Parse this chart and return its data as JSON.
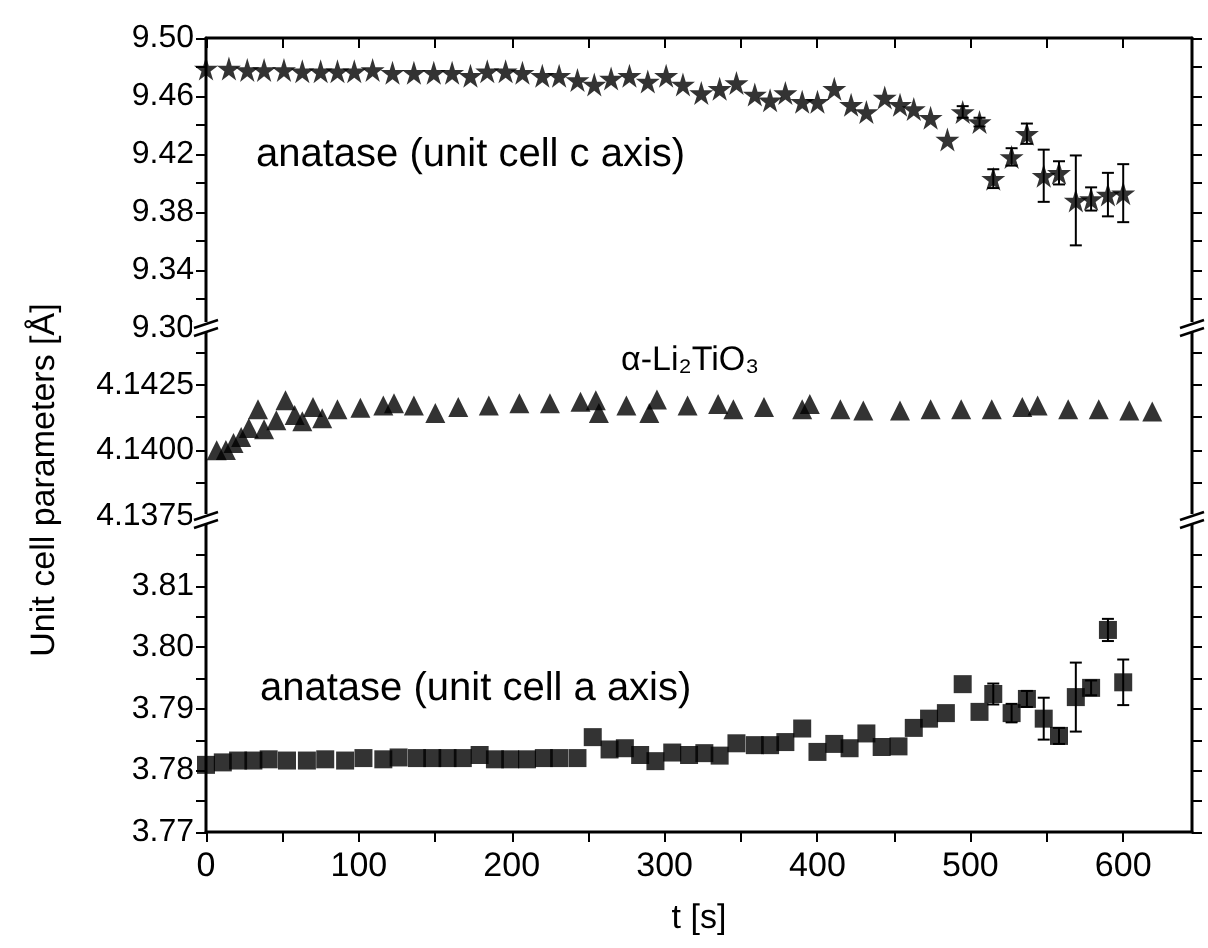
{
  "chart_data": [
    {
      "type": "scatter",
      "marker": "star",
      "color": "#000000",
      "tick_labels": "y",
      "annotations": [
        "anatase (unit cell c axis)"
      ],
      "x": [
        0,
        15,
        27,
        38,
        51,
        63,
        75,
        86,
        97,
        109,
        122,
        136,
        149,
        161,
        173,
        184,
        196,
        207,
        220,
        231,
        243,
        254,
        265,
        277,
        289,
        301,
        312,
        324,
        336,
        347,
        359,
        369,
        379,
        390,
        400,
        411,
        422,
        432,
        444,
        454,
        463,
        474,
        485,
        495,
        506,
        515,
        527,
        537,
        548,
        558,
        569,
        579,
        590,
        600
      ],
      "values": [
        9.479,
        9.479,
        9.478,
        9.478,
        9.478,
        9.477,
        9.477,
        9.477,
        9.477,
        9.478,
        9.476,
        9.476,
        9.476,
        9.476,
        9.474,
        9.477,
        9.477,
        9.476,
        9.474,
        9.474,
        9.471,
        9.468,
        9.472,
        9.474,
        9.47,
        9.474,
        9.468,
        9.462,
        9.465,
        9.469,
        9.461,
        9.457,
        9.462,
        9.456,
        9.456,
        9.465,
        9.454,
        9.449,
        9.459,
        9.454,
        9.451,
        9.445,
        9.43,
        9.449,
        9.442,
        9.403,
        9.418,
        9.434,
        9.405,
        9.407,
        9.388,
        9.389,
        9.392,
        9.393
      ],
      "errors": [
        null,
        null,
        null,
        null,
        null,
        null,
        null,
        null,
        null,
        null,
        null,
        null,
        null,
        null,
        null,
        null,
        null,
        null,
        null,
        null,
        null,
        null,
        null,
        null,
        null,
        null,
        null,
        null,
        null,
        null,
        null,
        null,
        null,
        null,
        null,
        null,
        null,
        null,
        null,
        null,
        null,
        null,
        null,
        0.004,
        0.003,
        0.0065,
        0.006,
        0.007,
        0.018,
        0.008,
        0.031,
        0.008,
        0.015,
        0.02
      ],
      "xlim": [
        0,
        645
      ],
      "xticks": [
        0,
        {
          "value": 50,
          "label": null
        },
        100,
        {
          "value": 150,
          "label": null
        },
        200,
        {
          "value": 250,
          "label": null
        },
        300,
        {
          "value": 350,
          "label": null
        },
        400,
        {
          "value": 450,
          "label": null
        },
        500,
        {
          "value": 550,
          "label": null
        },
        600
      ],
      "ylim": [
        9.3,
        9.5
      ],
      "yticks": [
        {
          "value": 9.3,
          "label": "9.30"
        },
        {
          "value": 9.32,
          "label": null
        },
        9.34,
        {
          "value": 9.36,
          "label": null
        },
        9.38,
        {
          "value": 9.4,
          "label": null
        },
        9.42,
        {
          "value": 9.44,
          "label": null
        },
        9.46,
        {
          "value": 9.48,
          "label": null
        },
        {
          "value": 9.5,
          "label": "9.50"
        }
      ]
    },
    {
      "type": "scatter",
      "marker": "triangle",
      "color": "#000000",
      "tick_labels": "y",
      "ylabel": "Unit cell parameters [Å]",
      "annotations": [
        "α-Li₂TiO₃"
      ],
      "x": [
        7,
        13,
        18,
        23,
        28,
        34,
        38,
        46,
        52,
        58,
        63,
        70,
        76,
        86,
        101,
        116,
        123,
        136,
        150,
        165,
        185,
        205,
        225,
        245,
        255,
        257,
        275,
        290,
        295,
        315,
        335,
        345,
        365,
        390,
        395,
        415,
        430,
        454,
        474,
        494,
        514,
        534,
        544,
        564,
        584,
        604,
        619
      ],
      "values": [
        4.14,
        4.14001,
        4.14028,
        4.14051,
        4.14085,
        4.14156,
        4.1408,
        4.14114,
        4.1419,
        4.14134,
        4.1411,
        4.14165,
        4.14122,
        4.14156,
        4.14162,
        4.1417,
        4.14179,
        4.1417,
        4.14142,
        4.14165,
        4.1417,
        4.14179,
        4.14179,
        4.14185,
        4.1419,
        4.14142,
        4.1417,
        4.14142,
        4.14193,
        4.1417,
        4.14176,
        4.14156,
        4.14165,
        4.14156,
        4.14176,
        4.14156,
        4.14151,
        4.14151,
        4.14156,
        4.14156,
        4.14156,
        4.14165,
        4.1417,
        4.14156,
        4.14156,
        4.14151,
        4.14148
      ],
      "xlim": [
        0,
        645
      ],
      "xticks": [
        0,
        100,
        200,
        300,
        400,
        500,
        600
      ],
      "ylim": [
        4.1375,
        4.1445
      ],
      "yticks": [
        4.1375,
        {
          "value": 4.13875,
          "label": null
        },
        {
          "value": 4.14,
          "label": "4.1400"
        },
        {
          "value": 4.14125,
          "label": null
        },
        4.1425,
        {
          "value": 4.14375,
          "label": null
        }
      ]
    },
    {
      "type": "scatter",
      "marker": "square",
      "color": "#000000",
      "xlabel": "t [s]",
      "annotations": [
        "anatase (unit cell a axis)"
      ],
      "x": [
        0,
        11,
        21,
        31,
        41,
        53,
        66,
        78,
        91,
        103,
        116,
        126,
        138,
        148,
        158,
        168,
        179,
        189,
        199,
        210,
        221,
        231,
        243,
        253,
        264,
        274,
        284,
        294,
        305,
        316,
        326,
        336,
        347,
        359,
        369,
        379,
        390,
        400,
        411,
        421,
        432,
        442,
        453,
        463,
        473,
        484,
        495,
        506,
        515,
        527,
        537,
        548,
        558,
        569,
        579,
        590,
        600
      ],
      "values": [
        3.7809,
        3.7813,
        3.7816,
        3.7816,
        3.7818,
        3.7816,
        3.7816,
        3.7818,
        3.7816,
        3.782,
        3.7818,
        3.7821,
        3.782,
        3.782,
        3.782,
        3.782,
        3.7825,
        3.7818,
        3.7818,
        3.7818,
        3.782,
        3.782,
        3.782,
        3.7854,
        3.7834,
        3.7836,
        3.7825,
        3.7815,
        3.7829,
        3.7825,
        3.7828,
        3.7824,
        3.7844,
        3.7841,
        3.7841,
        3.7846,
        3.7868,
        3.783,
        3.7843,
        3.7836,
        3.786,
        3.7838,
        3.7839,
        3.7869,
        3.7884,
        3.7893,
        3.794,
        3.7895,
        3.7924,
        3.7893,
        3.7916,
        3.7884,
        3.7856,
        3.7919,
        3.7934,
        3.8028,
        3.7943
      ],
      "errors": [
        null,
        null,
        null,
        null,
        null,
        null,
        null,
        null,
        null,
        null,
        null,
        null,
        null,
        null,
        null,
        null,
        null,
        null,
        null,
        null,
        null,
        null,
        null,
        null,
        null,
        null,
        null,
        null,
        null,
        null,
        null,
        null,
        null,
        null,
        null,
        null,
        null,
        null,
        null,
        null,
        null,
        null,
        null,
        null,
        null,
        null,
        null,
        null,
        0.0017,
        0.0015,
        0.0013,
        0.0034,
        0.0013,
        0.0056,
        0.0012,
        0.0018,
        0.0037
      ],
      "xlim": [
        0,
        645
      ],
      "xticks": [
        0,
        {
          "value": 50,
          "label": null
        },
        100,
        {
          "value": 150,
          "label": null
        },
        200,
        {
          "value": 250,
          "label": null
        },
        300,
        {
          "value": 350,
          "label": null
        },
        400,
        {
          "value": 450,
          "label": null
        },
        500,
        {
          "value": 550,
          "label": null
        },
        600
      ],
      "ylim": [
        3.77,
        3.82
      ],
      "yticks": [
        3.77,
        {
          "value": 3.775,
          "label": null
        },
        3.78,
        {
          "value": 3.785,
          "label": null
        },
        3.79,
        {
          "value": 3.795,
          "label": null
        },
        {
          "value": 3.8,
          "label": "3.80"
        },
        {
          "value": 3.805,
          "label": null
        },
        3.81,
        {
          "value": 3.815,
          "label": null
        }
      ]
    }
  ]
}
